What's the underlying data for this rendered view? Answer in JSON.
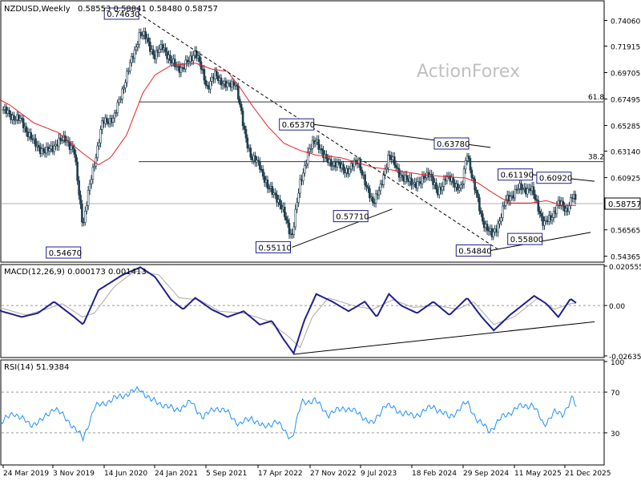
{
  "header": {
    "symbol_text": "NZDUSD,Weekly",
    "ohlc_text": "0.58553 0.58841 0.58480 0.58757",
    "watermark": "ActionForex"
  },
  "colors": {
    "candle": "#1f3d4d",
    "ma": "#e8202a",
    "blue": "#1f1f8f",
    "macd_signal": "#a9a9a9",
    "rsi": "#1e90ff",
    "fib": "#333333",
    "trend": "#000000",
    "box_border": "#1f1f8f"
  },
  "chart_data": [
    {
      "type": "candlestick",
      "title": "NZDUSD,Weekly",
      "ohlc_label": "0.58553 0.58841 0.58480 0.58757",
      "ylim": [
        0.54,
        0.755
      ],
      "y_ticks": [
        "0.74060",
        "0.71915",
        "0.69705",
        "0.67495",
        "0.65285",
        "0.63140",
        "0.60925",
        "0.58757",
        "0.56565",
        "0.54365"
      ],
      "current_price": "0.58757",
      "x_ticks": [
        "24 Mar 2019",
        "3 Nov 2019",
        "14 Jun 2020",
        "24 Jan 2021",
        "5 Sep 2021",
        "17 Apr 2022",
        "27 Nov 2022",
        "9 Jul 2023",
        "18 Feb 2024",
        "29 Sep 2024",
        "11 May 2025",
        "21 Dec 2025"
      ],
      "fib_levels": [
        {
          "label": "61.8",
          "value": 0.6725
        },
        {
          "label": "38.2",
          "value": 0.6226
        }
      ],
      "price_labels": [
        {
          "label": "0.74630",
          "x": 2020.88,
          "value": 0.7463
        },
        {
          "label": "0.54670",
          "x": 2020.2,
          "value": 0.5467
        },
        {
          "label": "0.65370",
          "x": 2023.09,
          "value": 0.6537
        },
        {
          "label": "0.55110",
          "x": 2022.8,
          "value": 0.5511
        },
        {
          "label": "0.57710",
          "x": 2023.76,
          "value": 0.5771
        },
        {
          "label": "0.63780",
          "x": 2024.97,
          "value": 0.6378
        },
        {
          "label": "0.61190",
          "x": 2025.76,
          "value": 0.6119
        },
        {
          "label": "0.60920",
          "x": 2026.24,
          "value": 0.6092
        },
        {
          "label": "0.55800",
          "x": 2025.92,
          "value": 0.558
        },
        {
          "label": "0.54840",
          "x": 2025.28,
          "value": 0.5484
        }
      ],
      "trendlines": [
        {
          "from": [
            2020.9,
            0.7463
          ],
          "to": [
            2025.36,
            0.549
          ],
          "style": "dashed"
        },
        {
          "from": [
            2023.07,
            0.6537
          ],
          "to": [
            2025.26,
            0.6345
          ],
          "style": "solid"
        },
        {
          "from": [
            2022.8,
            0.5511
          ],
          "to": [
            2024.04,
            0.583
          ],
          "style": "solid"
        },
        {
          "from": [
            2025.26,
            0.5484
          ],
          "to": [
            2026.5,
            0.5635
          ],
          "style": "solid"
        },
        {
          "from": [
            2025.76,
            0.6119
          ],
          "to": [
            2026.55,
            0.6062
          ],
          "style": "solid"
        }
      ],
      "close_anchors": [
        [
          2019.12,
          0.67
        ],
        [
          2019.3,
          0.662
        ],
        [
          2019.45,
          0.656
        ],
        [
          2019.6,
          0.638
        ],
        [
          2019.75,
          0.63
        ],
        [
          2019.88,
          0.638
        ],
        [
          2020.0,
          0.642
        ],
        [
          2020.1,
          0.63
        ],
        [
          2020.17,
          0.59
        ],
        [
          2020.21,
          0.57
        ],
        [
          2020.3,
          0.605
        ],
        [
          2020.45,
          0.655
        ],
        [
          2020.6,
          0.66
        ],
        [
          2020.75,
          0.695
        ],
        [
          2020.85,
          0.715
        ],
        [
          2020.91,
          0.73
        ],
        [
          2021.0,
          0.725
        ],
        [
          2021.1,
          0.71
        ],
        [
          2021.2,
          0.72
        ],
        [
          2021.3,
          0.705
        ],
        [
          2021.45,
          0.7
        ],
        [
          2021.6,
          0.715
        ],
        [
          2021.75,
          0.685
        ],
        [
          2021.85,
          0.695
        ],
        [
          2022.0,
          0.685
        ],
        [
          2022.1,
          0.69
        ],
        [
          2022.2,
          0.65
        ],
        [
          2022.3,
          0.625
        ],
        [
          2022.4,
          0.62
        ],
        [
          2022.5,
          0.6
        ],
        [
          2022.6,
          0.595
        ],
        [
          2022.72,
          0.575
        ],
        [
          2022.8,
          0.56
        ],
        [
          2022.9,
          0.605
        ],
        [
          2023.0,
          0.63
        ],
        [
          2023.1,
          0.642
        ],
        [
          2023.2,
          0.625
        ],
        [
          2023.35,
          0.62
        ],
        [
          2023.5,
          0.615
        ],
        [
          2023.62,
          0.625
        ],
        [
          2023.72,
          0.6
        ],
        [
          2023.8,
          0.59
        ],
        [
          2023.9,
          0.6
        ],
        [
          2024.0,
          0.63
        ],
        [
          2024.1,
          0.615
        ],
        [
          2024.25,
          0.605
        ],
        [
          2024.4,
          0.605
        ],
        [
          2024.5,
          0.615
        ],
        [
          2024.6,
          0.595
        ],
        [
          2024.7,
          0.61
        ],
        [
          2024.8,
          0.605
        ],
        [
          2024.9,
          0.6
        ],
        [
          2024.97,
          0.63
        ],
        [
          2025.05,
          0.605
        ],
        [
          2025.15,
          0.575
        ],
        [
          2025.28,
          0.56
        ],
        [
          2025.35,
          0.57
        ],
        [
          2025.45,
          0.59
        ],
        [
          2025.6,
          0.6
        ],
        [
          2025.76,
          0.6
        ],
        [
          2025.85,
          0.585
        ],
        [
          2025.92,
          0.57
        ],
        [
          2026.0,
          0.575
        ],
        [
          2026.1,
          0.588
        ],
        [
          2026.2,
          0.582
        ],
        [
          2026.28,
          0.595
        ],
        [
          2026.35,
          0.58
        ],
        [
          2026.42,
          0.5876
        ]
      ],
      "ma_anchors": [
        [
          2019.02,
          0.68
        ],
        [
          2019.3,
          0.67
        ],
        [
          2019.6,
          0.655
        ],
        [
          2019.9,
          0.647
        ],
        [
          2020.2,
          0.63
        ],
        [
          2020.4,
          0.62
        ],
        [
          2020.55,
          0.626
        ],
        [
          2020.75,
          0.645
        ],
        [
          2020.95,
          0.68
        ],
        [
          2021.1,
          0.695
        ],
        [
          2021.3,
          0.703
        ],
        [
          2021.6,
          0.705
        ],
        [
          2021.8,
          0.7
        ],
        [
          2022.0,
          0.698
        ],
        [
          2022.15,
          0.685
        ],
        [
          2022.3,
          0.67
        ],
        [
          2022.5,
          0.652
        ],
        [
          2022.7,
          0.638
        ],
        [
          2022.9,
          0.632
        ],
        [
          2023.1,
          0.628
        ],
        [
          2023.4,
          0.626
        ],
        [
          2023.6,
          0.622
        ],
        [
          2023.8,
          0.618
        ],
        [
          2024.1,
          0.615
        ],
        [
          2024.4,
          0.612
        ],
        [
          2024.7,
          0.61
        ],
        [
          2024.95,
          0.609
        ],
        [
          2025.1,
          0.605
        ],
        [
          2025.3,
          0.596
        ],
        [
          2025.5,
          0.588
        ],
        [
          2025.75,
          0.588
        ],
        [
          2025.95,
          0.59
        ],
        [
          2026.15,
          0.586
        ],
        [
          2026.42,
          0.586
        ]
      ]
    },
    {
      "type": "line",
      "title": "MACD(12,26,9) 0.000173 0.001413",
      "ylim": [
        -0.02636,
        0.020555
      ],
      "y_ticks": [
        "0.020555",
        "0.00",
        "-0.026356"
      ],
      "series": [
        {
          "name": "MACD",
          "anchors": [
            [
              2019.02,
              0.0
            ],
            [
              2019.2,
              -0.003
            ],
            [
              2019.45,
              -0.006
            ],
            [
              2019.65,
              -0.004
            ],
            [
              2019.85,
              0.002
            ],
            [
              2020.1,
              -0.006
            ],
            [
              2020.21,
              -0.01
            ],
            [
              2020.4,
              0.008
            ],
            [
              2020.7,
              0.016
            ],
            [
              2020.92,
              0.02
            ],
            [
              2021.1,
              0.015
            ],
            [
              2021.3,
              0.003
            ],
            [
              2021.45,
              -0.002
            ],
            [
              2021.6,
              0.004
            ],
            [
              2021.8,
              -0.002
            ],
            [
              2022.0,
              -0.006
            ],
            [
              2022.2,
              -0.003
            ],
            [
              2022.4,
              -0.01
            ],
            [
              2022.55,
              -0.008
            ],
            [
              2022.7,
              -0.018
            ],
            [
              2022.82,
              -0.025
            ],
            [
              2022.95,
              -0.008
            ],
            [
              2023.1,
              0.006
            ],
            [
              2023.3,
              0.002
            ],
            [
              2023.5,
              -0.003
            ],
            [
              2023.7,
              0.002
            ],
            [
              2023.85,
              -0.006
            ],
            [
              2024.0,
              0.006
            ],
            [
              2024.15,
              0.0
            ],
            [
              2024.35,
              -0.004
            ],
            [
              2024.55,
              0.002
            ],
            [
              2024.75,
              -0.005
            ],
            [
              2024.97,
              0.004
            ],
            [
              2025.15,
              -0.006
            ],
            [
              2025.3,
              -0.013
            ],
            [
              2025.5,
              -0.005
            ],
            [
              2025.8,
              0.005
            ],
            [
              2025.95,
              0.001
            ],
            [
              2026.1,
              -0.006
            ],
            [
              2026.25,
              0.0035
            ],
            [
              2026.35,
              0.0005
            ],
            [
              2026.42,
              0.0002
            ]
          ]
        },
        {
          "name": "Signal",
          "anchors": [
            [
              2019.02,
              0.001
            ],
            [
              2019.25,
              -0.002
            ],
            [
              2019.5,
              -0.005
            ],
            [
              2019.75,
              -0.002
            ],
            [
              2019.95,
              0.001
            ],
            [
              2020.2,
              -0.006
            ],
            [
              2020.35,
              -0.004
            ],
            [
              2020.6,
              0.01
            ],
            [
              2020.85,
              0.018
            ],
            [
              2021.15,
              0.016
            ],
            [
              2021.4,
              0.004
            ],
            [
              2021.65,
              0.003
            ],
            [
              2021.9,
              -0.003
            ],
            [
              2022.2,
              -0.004
            ],
            [
              2022.5,
              -0.008
            ],
            [
              2022.75,
              -0.016
            ],
            [
              2022.9,
              -0.022
            ],
            [
              2023.05,
              -0.006
            ],
            [
              2023.25,
              0.004
            ],
            [
              2023.55,
              0.0
            ],
            [
              2023.8,
              -0.002
            ],
            [
              2024.05,
              0.003
            ],
            [
              2024.3,
              -0.001
            ],
            [
              2024.6,
              0.0
            ],
            [
              2024.85,
              -0.002
            ],
            [
              2025.05,
              0.002
            ],
            [
              2025.3,
              -0.01
            ],
            [
              2025.55,
              -0.006
            ],
            [
              2025.85,
              0.004
            ],
            [
              2026.05,
              -0.002
            ],
            [
              2026.25,
              0.001
            ],
            [
              2026.42,
              0.0014
            ]
          ]
        }
      ],
      "trendline": {
        "from": [
          2022.82,
          -0.0255
        ],
        "to": [
          2026.55,
          -0.0085
        ]
      }
    },
    {
      "type": "line",
      "title": "RSI(14) 51.9384",
      "ylim": [
        0,
        100
      ],
      "y_ticks": [
        "100",
        "70",
        "30"
      ],
      "levels": [
        70,
        30
      ],
      "series": [
        {
          "name": "RSI",
          "anchors": [
            [
              2019.02,
              45
            ],
            [
              2019.2,
              40
            ],
            [
              2019.35,
              50
            ],
            [
              2019.55,
              38
            ],
            [
              2019.7,
              42
            ],
            [
              2019.85,
              55
            ],
            [
              2020.05,
              40
            ],
            [
              2020.21,
              24
            ],
            [
              2020.35,
              55
            ],
            [
              2020.55,
              62
            ],
            [
              2020.75,
              68
            ],
            [
              2020.92,
              73
            ],
            [
              2021.05,
              62
            ],
            [
              2021.2,
              58
            ],
            [
              2021.35,
              52
            ],
            [
              2021.55,
              60
            ],
            [
              2021.7,
              45
            ],
            [
              2021.85,
              55
            ],
            [
              2022.0,
              50
            ],
            [
              2022.15,
              38
            ],
            [
              2022.3,
              45
            ],
            [
              2022.45,
              35
            ],
            [
              2022.6,
              42
            ],
            [
              2022.72,
              30
            ],
            [
              2022.8,
              25
            ],
            [
              2022.92,
              60
            ],
            [
              2023.08,
              62
            ],
            [
              2023.25,
              48
            ],
            [
              2023.45,
              55
            ],
            [
              2023.65,
              48
            ],
            [
              2023.8,
              38
            ],
            [
              2023.95,
              58
            ],
            [
              2024.1,
              52
            ],
            [
              2024.3,
              46
            ],
            [
              2024.55,
              56
            ],
            [
              2024.75,
              45
            ],
            [
              2024.97,
              60
            ],
            [
              2025.1,
              42
            ],
            [
              2025.25,
              32
            ],
            [
              2025.4,
              45
            ],
            [
              2025.6,
              55
            ],
            [
              2025.78,
              58
            ],
            [
              2025.92,
              38
            ],
            [
              2026.05,
              50
            ],
            [
              2026.15,
              48
            ],
            [
              2026.28,
              65
            ],
            [
              2026.35,
              45
            ],
            [
              2026.42,
              52
            ]
          ]
        }
      ]
    }
  ]
}
